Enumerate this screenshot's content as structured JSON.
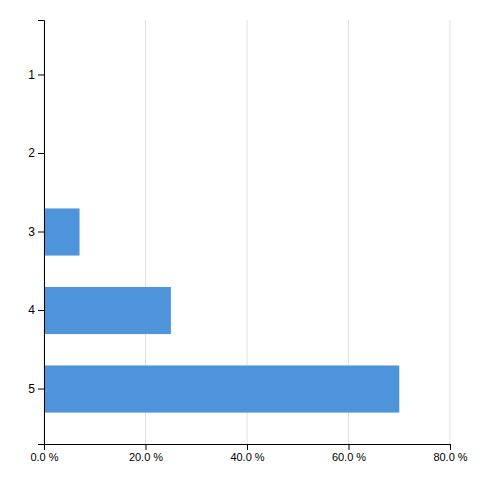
{
  "chart_data": {
    "type": "bar",
    "orientation": "horizontal",
    "categories": [
      "1",
      "2",
      "3",
      "4",
      "5"
    ],
    "values": [
      0.0,
      0.0,
      7.0,
      25.0,
      70.0
    ],
    "color": "#4d94db",
    "xlim": [
      0,
      80
    ],
    "xticks": [
      {
        "value": 0,
        "label": "0.0 %"
      },
      {
        "value": 20,
        "label": "20.0 %"
      },
      {
        "value": 40,
        "label": "40.0 %"
      },
      {
        "value": 60,
        "label": "60.0 %"
      },
      {
        "value": 80,
        "label": "80.0 %"
      }
    ],
    "grid": true
  }
}
